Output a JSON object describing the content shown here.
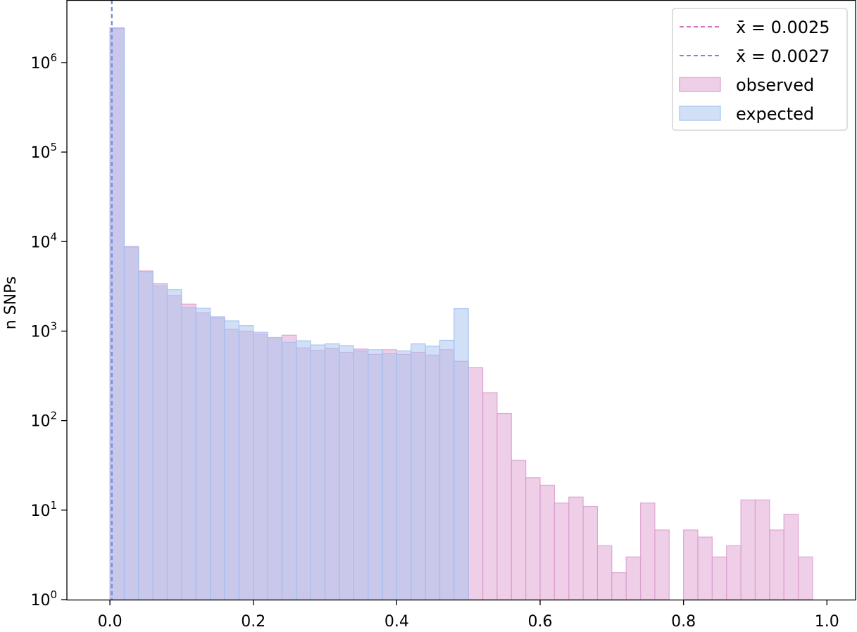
{
  "chart_data": {
    "type": "bar",
    "title": "",
    "xlabel": "",
    "ylabel": "n SNPs",
    "yscale": "log",
    "xlim": [
      -0.06,
      1.04
    ],
    "ylim": [
      1,
      5000000
    ],
    "grid": false,
    "bin_width": 0.02,
    "x_ticks": [
      {
        "value": 0.0,
        "label": "0.0"
      },
      {
        "value": 0.2,
        "label": "0.2"
      },
      {
        "value": 0.4,
        "label": "0.4"
      },
      {
        "value": 0.6,
        "label": "0.6"
      },
      {
        "value": 0.8,
        "label": "0.8"
      },
      {
        "value": 1.0,
        "label": "1.0"
      }
    ],
    "y_ticks": [
      {
        "value": 1,
        "base": "10",
        "exp": "0"
      },
      {
        "value": 10,
        "base": "10",
        "exp": "1"
      },
      {
        "value": 100,
        "base": "10",
        "exp": "2"
      },
      {
        "value": 1000,
        "base": "10",
        "exp": "3"
      },
      {
        "value": 10000,
        "base": "10",
        "exp": "4"
      },
      {
        "value": 100000,
        "base": "10",
        "exp": "5"
      },
      {
        "value": 1000000,
        "base": "10",
        "exp": "6"
      }
    ],
    "series": [
      {
        "name": "observed",
        "color": "#dda0cf",
        "bin_starts": [
          0.0,
          0.02,
          0.04,
          0.06,
          0.08,
          0.1,
          0.12,
          0.14,
          0.16,
          0.18,
          0.2,
          0.22,
          0.24,
          0.26,
          0.28,
          0.3,
          0.32,
          0.34,
          0.36,
          0.38,
          0.4,
          0.42,
          0.44,
          0.46,
          0.48,
          0.5,
          0.52,
          0.54,
          0.56,
          0.58,
          0.6,
          0.62,
          0.64,
          0.66,
          0.68,
          0.7,
          0.72,
          0.74,
          0.76,
          0.78,
          0.8,
          0.82,
          0.84,
          0.86,
          0.88,
          0.9,
          0.92,
          0.94,
          0.96
        ],
        "values": [
          2400000,
          8800,
          4700,
          3400,
          2500,
          2000,
          1600,
          1400,
          1050,
          1000,
          920,
          820,
          900,
          650,
          610,
          640,
          580,
          630,
          550,
          620,
          550,
          580,
          540,
          620,
          460,
          390,
          205,
          120,
          36,
          23,
          19,
          12,
          14,
          11,
          4,
          2,
          3,
          12,
          6,
          0,
          6,
          5,
          3,
          4,
          13,
          13,
          6,
          9,
          3
        ]
      },
      {
        "name": "expected",
        "color": "#a3c1ef",
        "bin_starts": [
          0.0,
          0.02,
          0.04,
          0.06,
          0.08,
          0.1,
          0.12,
          0.14,
          0.16,
          0.18,
          0.2,
          0.22,
          0.24,
          0.26,
          0.28,
          0.3,
          0.32,
          0.34,
          0.36,
          0.38,
          0.4,
          0.42,
          0.44,
          0.46,
          0.48
        ],
        "values": [
          2450000,
          8700,
          4600,
          3200,
          2900,
          1850,
          1800,
          1450,
          1300,
          1150,
          970,
          850,
          750,
          780,
          700,
          720,
          690,
          600,
          620,
          560,
          600,
          720,
          680,
          790,
          1780
        ]
      }
    ],
    "mean_lines": [
      {
        "label": "x̄ = 0.0025",
        "x": 0.0025,
        "color": "#cf6fbf"
      },
      {
        "label": "x̄ = 0.0027",
        "x": 0.0027,
        "color": "#6b8fe0"
      }
    ],
    "legend": {
      "placement": "top-right",
      "entries": [
        {
          "label": "x̄ = 0.0025",
          "kind": "line",
          "color": "#cf6fbf"
        },
        {
          "label": "x̄ = 0.0027",
          "kind": "line",
          "color": "#6b8fe0"
        },
        {
          "label": "observed",
          "kind": "patch",
          "color": "#dda0cf"
        },
        {
          "label": "expected",
          "kind": "patch",
          "color": "#a3c1ef"
        }
      ]
    }
  }
}
